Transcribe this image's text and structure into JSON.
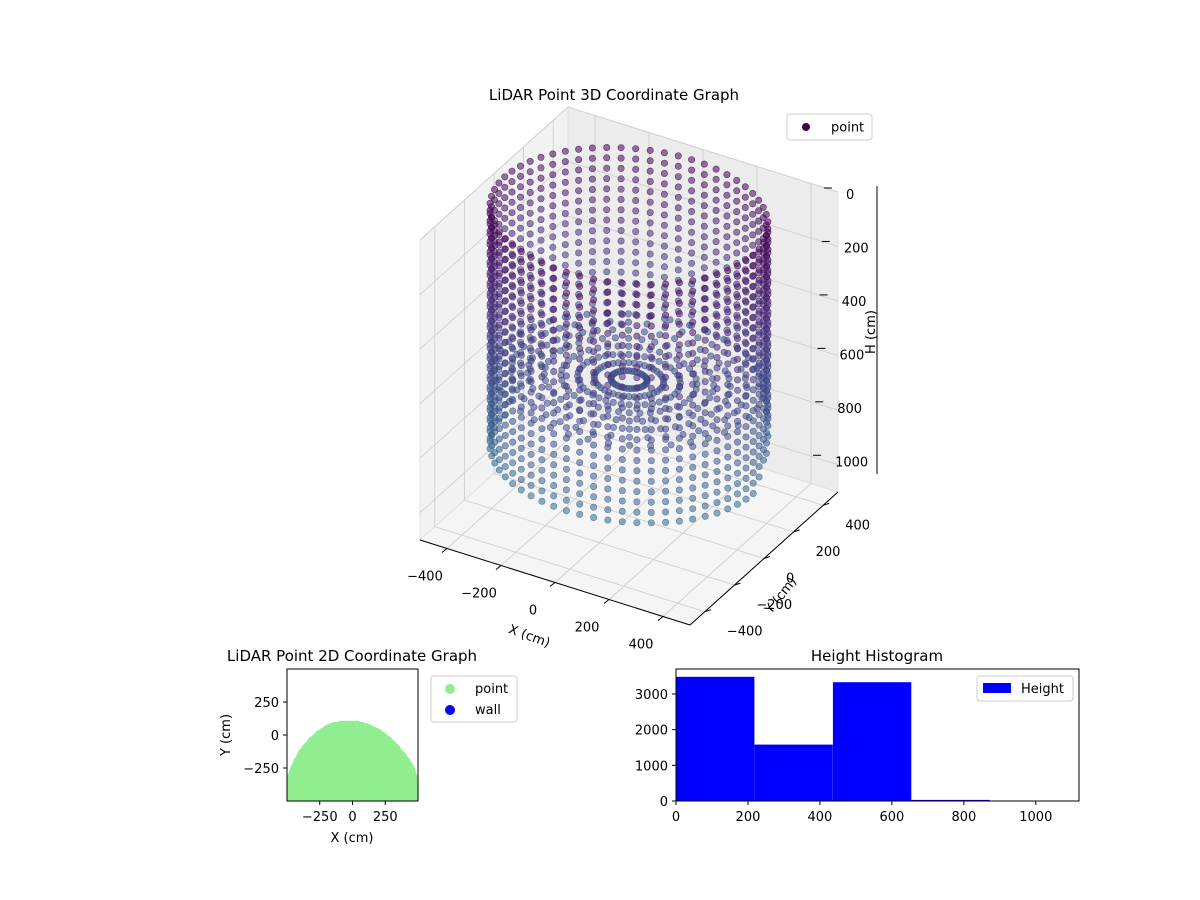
{
  "chart_data": [
    {
      "type": "scatter",
      "projection": "3d",
      "title": "LiDAR Point 3D Coordinate Graph",
      "xlabel": "X (cm)",
      "ylabel": "Y (cm)",
      "zlabel": "H (cm)",
      "xlim": [
        -500,
        500
      ],
      "ylim": [
        -500,
        500
      ],
      "zlim": [
        1100,
        0
      ],
      "x_ticks": [
        -400,
        -200,
        0,
        200,
        400
      ],
      "y_ticks": [
        -400,
        -200,
        0,
        200,
        400
      ],
      "z_ticks": [
        0,
        200,
        400,
        600,
        800,
        1000
      ],
      "x_tick_labels": [
        "−400",
        "−200",
        "0",
        "200",
        "400"
      ],
      "y_tick_labels": [
        "−400",
        "−200",
        "0",
        "200",
        "400"
      ],
      "z_tick_labels": [
        "0",
        "200",
        "400",
        "600",
        "800",
        "1000"
      ],
      "grid": true,
      "colormap": "viridis (height)",
      "series": [
        {
          "name": "point",
          "color": "#440154",
          "shape": "cylindrical wall of points, radius about 450 cm, heights 0 to about 870 cm, plus a floor fan of points at about 600 cm height"
        }
      ],
      "legend": {
        "position": "top-right",
        "entries": [
          "point"
        ]
      }
    },
    {
      "type": "scatter",
      "title": "LiDAR Point 2D Coordinate Graph",
      "xlabel": "X (cm)",
      "ylabel": "Y (cm)",
      "xlim": [
        -500,
        500
      ],
      "ylim": [
        -500,
        500
      ],
      "x_ticks": [
        -250,
        0,
        250
      ],
      "y_ticks": [
        -250,
        0,
        250
      ],
      "x_tick_labels": [
        "−250",
        "0",
        "250"
      ],
      "y_tick_labels": [
        "−250",
        "0",
        "250"
      ],
      "grid": false,
      "series": [
        {
          "name": "point",
          "color": "#90ee90",
          "shape": "filled half-disk, radius about 470 cm, from y = -500 up to y ≈ 100"
        },
        {
          "name": "wall",
          "color": "#0000ff",
          "points": []
        }
      ],
      "legend": {
        "position": "outside-right",
        "entries": [
          "point",
          "wall"
        ]
      }
    },
    {
      "type": "bar",
      "subtype": "histogram",
      "title": "Height Histogram",
      "xlim": [
        0,
        1120
      ],
      "ylim": [
        0,
        3700
      ],
      "x_ticks": [
        0,
        200,
        400,
        600,
        800,
        1000
      ],
      "y_ticks": [
        0,
        1000,
        2000,
        3000
      ],
      "x_tick_labels": [
        "0",
        "200",
        "400",
        "600",
        "800",
        "1000"
      ],
      "y_tick_labels": [
        "0",
        "1000",
        "2000",
        "3000"
      ],
      "bin_edges": [
        0,
        218,
        436,
        654,
        872,
        1090
      ],
      "series": [
        {
          "name": "Height",
          "color": "#0000ff",
          "values": [
            3480,
            1580,
            3330,
            30,
            0
          ]
        }
      ],
      "legend": {
        "position": "top-right",
        "entries": [
          "Height"
        ]
      }
    }
  ]
}
